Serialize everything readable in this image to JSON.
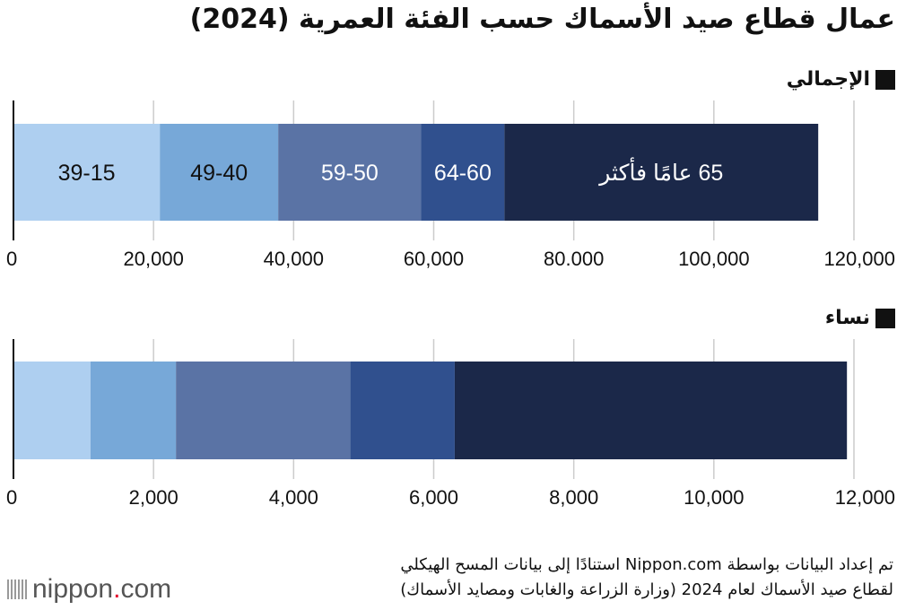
{
  "title": "عمال قطاع صيد الأسماك حسب الفئة العمرية (2024)",
  "colors": [
    "#aecff0",
    "#77a8d8",
    "#5a73a5",
    "#30508e",
    "#1b2849"
  ],
  "label_colors": [
    "#111111",
    "#111111",
    "#ffffff",
    "#ffffff",
    "#ffffff"
  ],
  "chart_data": [
    {
      "type": "bar",
      "orientation": "horizontal-stacked",
      "title": "الإجمالي",
      "categories": [
        "39-15",
        "49-40",
        "59-50",
        "64-60",
        "65 عامًا فأكثر"
      ],
      "values": [
        20900,
        16900,
        20400,
        11900,
        44800
      ],
      "xlim": [
        0,
        120000
      ],
      "ticks": [
        "0",
        "20,000",
        "40,000",
        "60,000",
        "80.000",
        "100,000",
        "120,000"
      ],
      "tick_values": [
        0,
        20000,
        40000,
        60000,
        80000,
        100000,
        120000
      ],
      "grid": true,
      "show_labels": true
    },
    {
      "type": "bar",
      "orientation": "horizontal-stacked",
      "title": "نساء",
      "categories": [
        "39-15",
        "49-40",
        "59-50",
        "64-60",
        "65 عامًا فأكثر"
      ],
      "values": [
        1100,
        1220,
        2490,
        1490,
        5600
      ],
      "xlim": [
        0,
        12000
      ],
      "ticks": [
        "0",
        "2,000",
        "4,000",
        "6,000",
        "8,000",
        "10,000",
        "12,000"
      ],
      "tick_values": [
        0,
        2000,
        4000,
        6000,
        8000,
        10000,
        12000
      ],
      "grid": true,
      "show_labels": false
    }
  ],
  "source": {
    "line1": "تم إعداد البيانات بواسطة Nippon.com استنادًا إلى بيانات المسح الهيكلي",
    "line2": "لقطاع صيد الأسماك لعام 2024 (وزارة الزراعة والغابات ومصايد الأسماك)"
  },
  "logo": {
    "main": "nippon",
    "dot": ".",
    "suffix": "com"
  }
}
